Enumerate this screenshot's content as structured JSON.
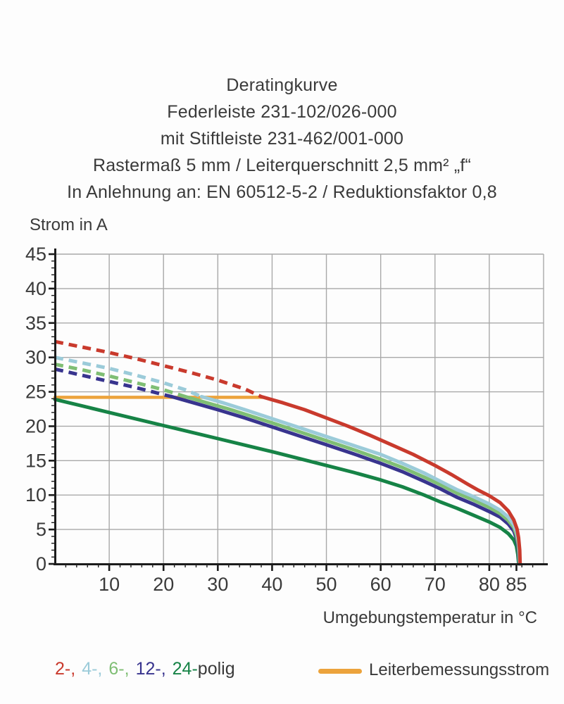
{
  "title": {
    "lines": [
      "Deratingkurve",
      "Federleiste 231-102/026-000",
      "mit Stiftleiste 231-462/001-000",
      "Rastermaß 5 mm / Leiterquerschnitt 2,5 mm² „f“",
      "In Anlehnung an: EN 60512-5-2 / Reduktionsfaktor 0,8"
    ]
  },
  "y_axis": {
    "label": "Strom in A"
  },
  "x_axis": {
    "label": "Umgebungstemperatur in °C"
  },
  "legend": {
    "poles": [
      {
        "text": "2-,",
        "color": "#c93a2d"
      },
      {
        "text": "4-,",
        "color": "#9bcbd9"
      },
      {
        "text": "6-,",
        "color": "#7fbe74"
      },
      {
        "text": "12-,",
        "color": "#38348e"
      },
      {
        "text": "24-",
        "color": "#168346"
      },
      {
        "text": "polig",
        "color": "#3a3a3a"
      }
    ],
    "reference": {
      "label": "Leiterbemessungsstrom",
      "color": "#eca33c"
    }
  },
  "colors": {
    "text": "#3a3a3a",
    "grid": "#a9a9a9",
    "axis": "#1c1c1c"
  },
  "chart_data": {
    "type": "line",
    "title": "Deratingkurve",
    "xlabel": "Umgebungstemperatur in °C",
    "ylabel": "Strom in A",
    "xlim": [
      0,
      90
    ],
    "ylim": [
      0,
      45
    ],
    "grid": true,
    "x_ticks": [
      10,
      20,
      30,
      40,
      50,
      60,
      70,
      80,
      85
    ],
    "y_ticks": [
      0,
      5,
      10,
      15,
      20,
      25,
      30,
      35,
      40,
      45
    ],
    "x_minor_step": 2,
    "y_minor_step": 1,
    "reference_line": {
      "name": "Leiterbemessungsstrom",
      "value": 24.2,
      "x_start": 0,
      "x_end": 38.5,
      "color": "#eca33c"
    },
    "series": [
      {
        "name": "24-polig",
        "poles": 24,
        "color": "#168346",
        "dashed": [],
        "solid": [
          [
            0,
            23.9
          ],
          [
            10,
            22.0
          ],
          [
            20,
            20.1
          ],
          [
            30,
            18.2
          ],
          [
            40,
            16.3
          ],
          [
            50,
            14.3
          ],
          [
            55,
            13.3
          ],
          [
            60,
            12.2
          ],
          [
            64,
            11.2
          ],
          [
            68,
            10.0
          ],
          [
            71,
            9.0
          ],
          [
            74,
            8.1
          ],
          [
            77,
            7.1
          ],
          [
            80,
            6.1
          ],
          [
            82,
            5.3
          ],
          [
            83.5,
            4.4
          ],
          [
            84.5,
            3.5
          ],
          [
            85,
            2.6
          ],
          [
            85.25,
            1.4
          ],
          [
            85.42,
            0
          ]
        ]
      },
      {
        "name": "12-polig",
        "poles": 12,
        "color": "#38348e",
        "dashed": [
          [
            0,
            28.3
          ],
          [
            5,
            27.4
          ],
          [
            10,
            26.5
          ],
          [
            15,
            25.6
          ],
          [
            20,
            24.6
          ],
          [
            21.5,
            24.3
          ]
        ],
        "solid": [
          [
            21.5,
            24.3
          ],
          [
            26,
            23.3
          ],
          [
            30,
            22.4
          ],
          [
            35,
            21.2
          ],
          [
            40,
            19.9
          ],
          [
            45,
            18.6
          ],
          [
            50,
            17.3
          ],
          [
            55,
            16.0
          ],
          [
            60,
            14.6
          ],
          [
            64,
            13.4
          ],
          [
            68,
            12.0
          ],
          [
            71,
            10.9
          ],
          [
            74,
            9.7
          ],
          [
            77,
            8.7
          ],
          [
            80,
            7.6
          ],
          [
            82,
            6.8
          ],
          [
            83.5,
            5.8
          ],
          [
            84.5,
            4.8
          ],
          [
            85,
            3.7
          ],
          [
            85.3,
            2.4
          ],
          [
            85.45,
            1.0
          ],
          [
            85.52,
            0
          ]
        ]
      },
      {
        "name": "6-polig",
        "poles": 6,
        "color": "#7fbe74",
        "dashed": [
          [
            0,
            29.0
          ],
          [
            5,
            28.2
          ],
          [
            10,
            27.3
          ],
          [
            15,
            26.3
          ],
          [
            20,
            25.3
          ],
          [
            24,
            24.3
          ]
        ],
        "solid": [
          [
            24,
            24.3
          ],
          [
            28,
            23.4
          ],
          [
            32,
            22.5
          ],
          [
            36,
            21.5
          ],
          [
            40,
            20.5
          ],
          [
            45,
            19.2
          ],
          [
            50,
            17.9
          ],
          [
            55,
            16.6
          ],
          [
            60,
            15.2
          ],
          [
            64,
            14.0
          ],
          [
            68,
            12.6
          ],
          [
            71,
            11.5
          ],
          [
            74,
            10.3
          ],
          [
            77,
            9.3
          ],
          [
            80,
            8.2
          ],
          [
            82,
            7.3
          ],
          [
            83.5,
            6.3
          ],
          [
            84.5,
            5.3
          ],
          [
            85,
            4.2
          ],
          [
            85.35,
            2.8
          ],
          [
            85.5,
            1.2
          ],
          [
            85.57,
            0
          ]
        ]
      },
      {
        "name": "4-polig",
        "poles": 4,
        "color": "#9bcbd9",
        "dashed": [
          [
            0,
            30.0
          ],
          [
            5,
            29.2
          ],
          [
            10,
            28.4
          ],
          [
            15,
            27.4
          ],
          [
            20,
            26.3
          ],
          [
            24,
            25.3
          ],
          [
            27,
            24.3
          ]
        ],
        "solid": [
          [
            27,
            24.3
          ],
          [
            31,
            23.4
          ],
          [
            35,
            22.4
          ],
          [
            40,
            21.1
          ],
          [
            45,
            19.8
          ],
          [
            50,
            18.5
          ],
          [
            55,
            17.2
          ],
          [
            60,
            15.9
          ],
          [
            64,
            14.6
          ],
          [
            68,
            13.2
          ],
          [
            71,
            12.0
          ],
          [
            74,
            10.8
          ],
          [
            77,
            9.8
          ],
          [
            80,
            8.7
          ],
          [
            82,
            7.8
          ],
          [
            83.5,
            6.8
          ],
          [
            84.5,
            5.7
          ],
          [
            85.1,
            4.5
          ],
          [
            85.4,
            3.2
          ],
          [
            85.55,
            1.6
          ],
          [
            85.62,
            0
          ]
        ]
      },
      {
        "name": "2-polig",
        "poles": 2,
        "color": "#c93a2d",
        "dashed": [
          [
            0,
            32.3
          ],
          [
            5,
            31.5
          ],
          [
            10,
            30.7
          ],
          [
            15,
            29.8
          ],
          [
            20,
            28.8
          ],
          [
            25,
            27.8
          ],
          [
            30,
            26.7
          ],
          [
            35,
            25.4
          ],
          [
            38,
            24.3
          ]
        ],
        "solid": [
          [
            38,
            24.3
          ],
          [
            42,
            23.4
          ],
          [
            46,
            22.4
          ],
          [
            50,
            21.2
          ],
          [
            54,
            20.0
          ],
          [
            58,
            18.7
          ],
          [
            62,
            17.3
          ],
          [
            66,
            15.9
          ],
          [
            70,
            14.3
          ],
          [
            73,
            13.0
          ],
          [
            76,
            11.6
          ],
          [
            78,
            10.7
          ],
          [
            80,
            9.9
          ],
          [
            82,
            8.9
          ],
          [
            83.5,
            7.7
          ],
          [
            84.5,
            6.4
          ],
          [
            85.1,
            5.1
          ],
          [
            85.4,
            3.8
          ],
          [
            85.6,
            2.0
          ],
          [
            85.68,
            0
          ]
        ]
      }
    ]
  }
}
